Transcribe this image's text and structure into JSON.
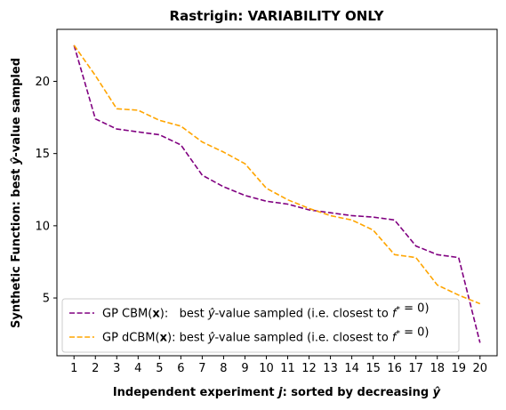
{
  "chart_data": {
    "type": "line",
    "title": "Rastrigin: VARIABILITY ONLY",
    "xlabel": "Independent experiment j: sorted by decreasing ŷ",
    "ylabel": "Synthetic Function: best ŷ-value sampled",
    "x": [
      1,
      2,
      3,
      4,
      5,
      6,
      7,
      8,
      9,
      10,
      11,
      12,
      13,
      14,
      15,
      16,
      17,
      18,
      19,
      20
    ],
    "xticks": [
      "1",
      "2",
      "3",
      "4",
      "5",
      "6",
      "7",
      "8",
      "9",
      "10",
      "11",
      "12",
      "13",
      "14",
      "15",
      "16",
      "17",
      "18",
      "19",
      "20"
    ],
    "yticks": [
      "5",
      "10",
      "15",
      "20"
    ],
    "xlim": [
      0.2,
      20.8
    ],
    "ylim": [
      1.0,
      23.6
    ],
    "grid": false,
    "legend_position": "lower-left",
    "series": [
      {
        "name": "GP CBM(x):   best ŷ-value sampled (i.e. closest to f* = 0)",
        "color": "#800080",
        "linestyle": "dashed",
        "values": [
          22.5,
          17.4,
          16.7,
          16.5,
          16.3,
          15.6,
          13.5,
          12.7,
          12.1,
          11.7,
          11.5,
          11.1,
          10.9,
          10.7,
          10.6,
          10.4,
          8.6,
          8.0,
          7.8,
          1.9
        ]
      },
      {
        "name": "GP dCBM(x): best ŷ-value sampled (i.e. closest to f* = 0)",
        "color": "#FFA500",
        "linestyle": "dashed",
        "values": [
          22.5,
          20.4,
          18.1,
          18.0,
          17.3,
          16.9,
          15.8,
          15.1,
          14.3,
          12.6,
          11.8,
          11.2,
          10.7,
          10.4,
          9.7,
          8.0,
          7.8,
          5.9,
          5.2,
          4.6
        ]
      }
    ]
  }
}
